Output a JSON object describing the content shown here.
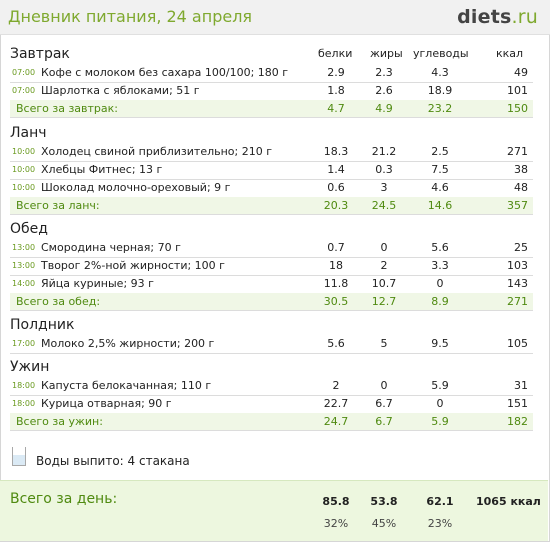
{
  "header": {
    "title": "Дневник питания, 24 апреля",
    "logo_main": "diets",
    "logo_suffix": ".ru"
  },
  "columns": {
    "protein": "белки",
    "fat": "жиры",
    "carbs": "углеводы",
    "kcal": "ккал"
  },
  "meals": {
    "breakfast": {
      "name": "Завтрак",
      "items": [
        {
          "time": "07:00",
          "name": "Кофе с молоком без сахара 100/100; 180 г",
          "protein": "2.9",
          "fat": "2.3",
          "carbs": "4.3",
          "kcal": "49"
        },
        {
          "time": "07:00",
          "name": "Шарлотка с яблоками; 51 г",
          "protein": "1.8",
          "fat": "2.6",
          "carbs": "18.9",
          "kcal": "101"
        }
      ],
      "total": {
        "label": "Всего за завтрак:",
        "protein": "4.7",
        "fat": "4.9",
        "carbs": "23.2",
        "kcal": "150"
      }
    },
    "lunch": {
      "name": "Ланч",
      "items": [
        {
          "time": "10:00",
          "name": "Холодец свиной приблизительно; 210 г",
          "protein": "18.3",
          "fat": "21.2",
          "carbs": "2.5",
          "kcal": "271"
        },
        {
          "time": "10:00",
          "name": "Хлебцы Фитнес; 13 г",
          "protein": "1.4",
          "fat": "0.3",
          "carbs": "7.5",
          "kcal": "38"
        },
        {
          "time": "10:00",
          "name": "Шоколад молочно-ореховый; 9 г",
          "protein": "0.6",
          "fat": "3",
          "carbs": "4.6",
          "kcal": "48"
        }
      ],
      "total": {
        "label": "Всего за ланч:",
        "protein": "20.3",
        "fat": "24.5",
        "carbs": "14.6",
        "kcal": "357"
      }
    },
    "dinner": {
      "name": "Обед",
      "items": [
        {
          "time": "13:00",
          "name": "Смородина черная; 70 г",
          "protein": "0.7",
          "fat": "0",
          "carbs": "5.6",
          "kcal": "25"
        },
        {
          "time": "13:00",
          "name": "Творог 2%-ной жирности; 100 г",
          "protein": "18",
          "fat": "2",
          "carbs": "3.3",
          "kcal": "103"
        },
        {
          "time": "14:00",
          "name": "Яйца куриные; 93 г",
          "protein": "11.8",
          "fat": "10.7",
          "carbs": "0",
          "kcal": "143"
        }
      ],
      "total": {
        "label": "Всего за обед:",
        "protein": "30.5",
        "fat": "12.7",
        "carbs": "8.9",
        "kcal": "271"
      }
    },
    "snack": {
      "name": "Полдник",
      "items": [
        {
          "time": "17:00",
          "name": "Молоко 2,5% жирности; 200 г",
          "protein": "5.6",
          "fat": "5",
          "carbs": "9.5",
          "kcal": "105"
        }
      ]
    },
    "supper": {
      "name": "Ужин",
      "items": [
        {
          "time": "18:00",
          "name": "Капуста белокачанная; 110 г",
          "protein": "2",
          "fat": "0",
          "carbs": "5.9",
          "kcal": "31"
        },
        {
          "time": "18:00",
          "name": "Курица отварная; 90 г",
          "protein": "22.7",
          "fat": "6.7",
          "carbs": "0",
          "kcal": "151"
        }
      ],
      "total": {
        "label": "Всего за ужин:",
        "protein": "24.7",
        "fat": "6.7",
        "carbs": "5.9",
        "kcal": "182"
      }
    }
  },
  "water": {
    "text": "Воды выпито: 4 стакана",
    "icon": "glass-icon"
  },
  "day_total": {
    "label": "Всего за день:",
    "protein": "85.8",
    "fat": "53.8",
    "carbs": "62.1",
    "kcal": "1065 ккал",
    "protein_pct": "32%",
    "fat_pct": "45%",
    "carbs_pct": "23%"
  },
  "colors": {
    "accent": "#7fa92f",
    "total_bg": "#f0f7e6",
    "day_bg": "#edf7df"
  }
}
